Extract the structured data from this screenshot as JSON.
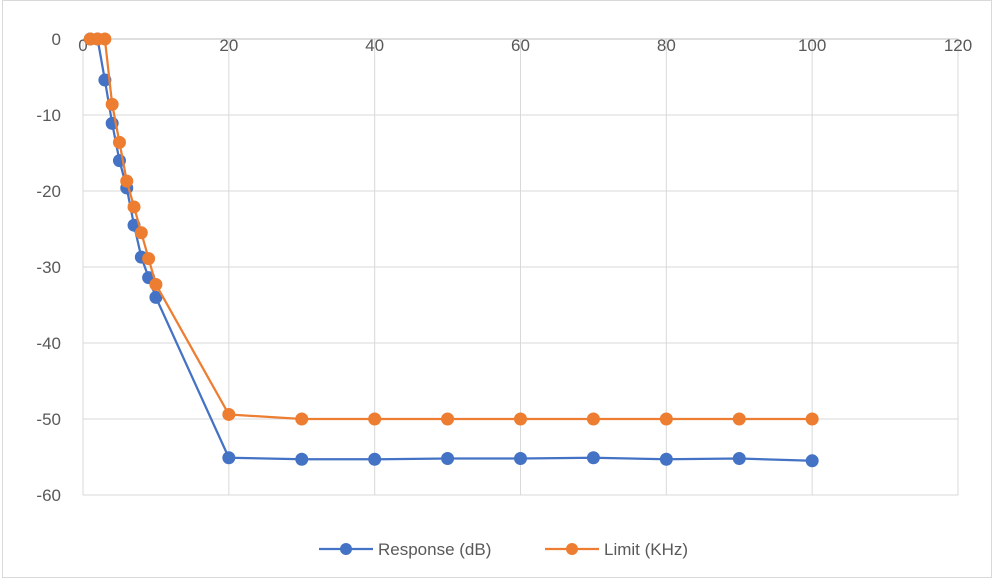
{
  "chart_data": {
    "type": "scatter",
    "xlim": [
      0,
      120
    ],
    "ylim": [
      -60,
      0
    ],
    "x_ticks": [
      "0",
      "20",
      "40",
      "60",
      "80",
      "100",
      "120"
    ],
    "y_ticks": [
      "0",
      "-10",
      "-20",
      "-30",
      "-40",
      "-50",
      "-60"
    ],
    "grid": true,
    "legend_position": "bottom",
    "series": [
      {
        "name": "Response (dB)",
        "color": "#4472c4",
        "x": [
          1,
          2,
          3,
          4,
          5,
          6,
          7,
          8,
          9,
          10,
          20,
          30,
          40,
          50,
          60,
          70,
          80,
          90,
          100
        ],
        "y": [
          0,
          0,
          -5.4,
          -11.1,
          -16,
          -19.6,
          -24.5,
          -28.7,
          -31.4,
          -34,
          -55.1,
          -55.3,
          -55.3,
          -55.2,
          -55.2,
          -55.1,
          -55.3,
          -55.2,
          -55.5
        ]
      },
      {
        "name": "Limit (KHz)",
        "color": "#ed7d31",
        "x": [
          1,
          2,
          3,
          4,
          5,
          6,
          7,
          8,
          9,
          10,
          20,
          30,
          40,
          50,
          60,
          70,
          80,
          90,
          100
        ],
        "y": [
          0,
          0,
          0,
          -8.6,
          -13.6,
          -18.7,
          -22.1,
          -25.5,
          -28.9,
          -32.3,
          -49.4,
          -50,
          -50,
          -50,
          -50,
          -50,
          -50,
          -50,
          -50
        ]
      }
    ]
  }
}
